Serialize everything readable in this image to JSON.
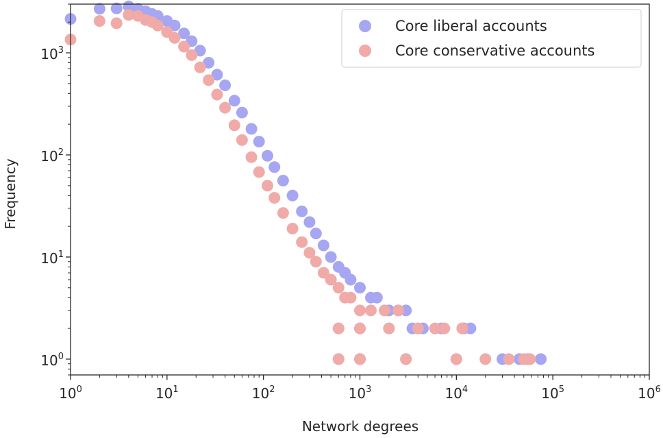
{
  "chart_data": {
    "type": "scatter",
    "xscale": "log",
    "yscale": "log",
    "xlabel": "Network degrees",
    "ylabel": "Frequency",
    "xlim": [
      1,
      1000000
    ],
    "ylim": [
      0.7,
      3000
    ],
    "x_ticks": [
      1,
      10,
      100,
      1000,
      10000,
      100000,
      1000000
    ],
    "y_ticks": [
      1,
      10,
      100,
      1000
    ],
    "grid": false,
    "legend_position": "upper-right",
    "series": [
      {
        "name": "Core liberal accounts",
        "color": "#a6a6f2",
        "points": [
          [
            1,
            2150
          ],
          [
            2,
            2700
          ],
          [
            3,
            2720
          ],
          [
            4,
            2850
          ],
          [
            5,
            2700
          ],
          [
            6,
            2550
          ],
          [
            7,
            2400
          ],
          [
            8,
            2300
          ],
          [
            10,
            2050
          ],
          [
            12,
            1850
          ],
          [
            15,
            1550
          ],
          [
            18,
            1300
          ],
          [
            22,
            1050
          ],
          [
            27,
            800
          ],
          [
            33,
            610
          ],
          [
            40,
            480
          ],
          [
            50,
            340
          ],
          [
            60,
            260
          ],
          [
            75,
            180
          ],
          [
            90,
            135
          ],
          [
            110,
            98
          ],
          [
            130,
            76
          ],
          [
            160,
            56
          ],
          [
            200,
            40
          ],
          [
            250,
            28
          ],
          [
            300,
            22
          ],
          [
            350,
            17
          ],
          [
            420,
            13
          ],
          [
            500,
            10
          ],
          [
            600,
            8
          ],
          [
            700,
            7
          ],
          [
            800,
            6
          ],
          [
            1000,
            5
          ],
          [
            1300,
            4
          ],
          [
            1500,
            4
          ],
          [
            2000,
            3
          ],
          [
            2500,
            3
          ],
          [
            3000,
            3
          ],
          [
            3500,
            2
          ],
          [
            4500,
            2
          ],
          [
            600,
            2
          ],
          [
            1000,
            2
          ],
          [
            2000,
            2
          ],
          [
            4000,
            2
          ],
          [
            7000,
            2
          ],
          [
            12000,
            2
          ],
          [
            14000,
            2
          ],
          [
            600,
            1
          ],
          [
            1000,
            1
          ],
          [
            3000,
            1
          ],
          [
            10000,
            1
          ],
          [
            30000,
            1
          ],
          [
            45000,
            1
          ],
          [
            55000,
            1
          ],
          [
            75000,
            1
          ]
        ]
      },
      {
        "name": "Core conservative accounts",
        "color": "#f0aaa8",
        "points": [
          [
            1,
            1350
          ],
          [
            2,
            2050
          ],
          [
            3,
            1950
          ],
          [
            4,
            2350
          ],
          [
            5,
            2300
          ],
          [
            6,
            2100
          ],
          [
            7,
            2000
          ],
          [
            8,
            1850
          ],
          [
            10,
            1600
          ],
          [
            12,
            1400
          ],
          [
            15,
            1150
          ],
          [
            18,
            950
          ],
          [
            22,
            720
          ],
          [
            27,
            540
          ],
          [
            33,
            390
          ],
          [
            40,
            290
          ],
          [
            50,
            195
          ],
          [
            60,
            140
          ],
          [
            75,
            95
          ],
          [
            90,
            68
          ],
          [
            110,
            50
          ],
          [
            130,
            38
          ],
          [
            160,
            27
          ],
          [
            200,
            19
          ],
          [
            250,
            14
          ],
          [
            300,
            11
          ],
          [
            350,
            9
          ],
          [
            420,
            7
          ],
          [
            500,
            6
          ],
          [
            600,
            5
          ],
          [
            700,
            4
          ],
          [
            800,
            4
          ],
          [
            1000,
            3
          ],
          [
            1300,
            3
          ],
          [
            1800,
            3
          ],
          [
            2500,
            3
          ],
          [
            600,
            2
          ],
          [
            1000,
            2
          ],
          [
            2000,
            2
          ],
          [
            4000,
            2
          ],
          [
            6000,
            2
          ],
          [
            7500,
            2
          ],
          [
            11500,
            2
          ],
          [
            600,
            1
          ],
          [
            1000,
            1
          ],
          [
            3000,
            1
          ],
          [
            10000,
            1
          ],
          [
            20000,
            1
          ],
          [
            35000,
            1
          ],
          [
            50000,
            1
          ],
          [
            58000,
            1
          ]
        ]
      }
    ]
  }
}
